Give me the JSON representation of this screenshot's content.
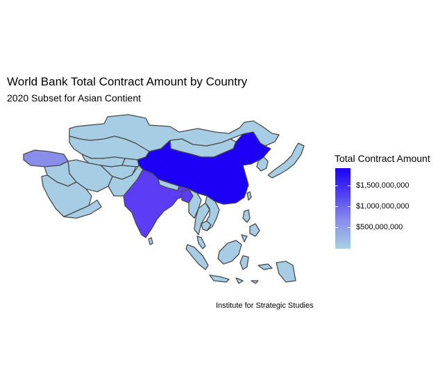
{
  "title": "World Bank Total Contract Amount by Country",
  "subtitle": "2020 Subset for Asian Contient",
  "caption": "Institute for Strategic Studies",
  "legend": {
    "title": "Total Contract Amount",
    "ticks": [
      "$1,500,000,000",
      "$1,000,000,000",
      "$500,000,000"
    ],
    "tick_values": [
      1500000000,
      1000000000,
      500000000
    ],
    "range": [
      0,
      1900000000
    ],
    "low_color": "#a6d0e4",
    "high_color": "#1c00f5"
  },
  "colors": {
    "default_fill": "#a6cde3",
    "border": "#4a4a4a",
    "china": "#1c00f5",
    "india": "#5c3cf5",
    "turkey": "#8a8eeb",
    "bangladesh": "#5c3cf5"
  }
}
